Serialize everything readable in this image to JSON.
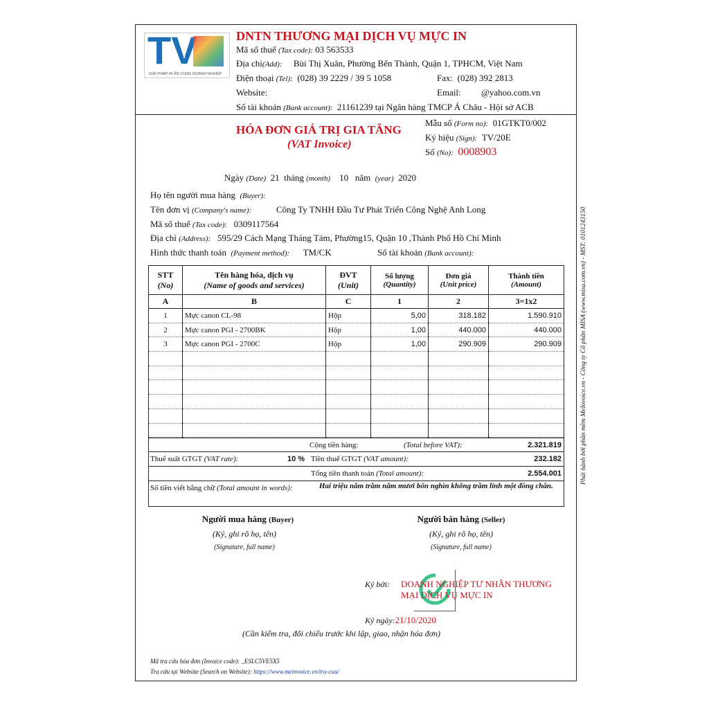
{
  "seller": {
    "name": "DNTN THƯƠNG MẠI DỊCH VỤ MỰC IN",
    "tax_label": "Mã số thuế",
    "tax_en": "(Tax code):",
    "tax": "03      563533",
    "addr_label": "Địa chỉ",
    "addr_en": "(Add):",
    "addr": "Bùi Thị Xuân, Phường Bến Thành, Quận 1, TPHCM, Việt Nam",
    "tel_label": "Điện thoại",
    "tel_en": "(Tel):",
    "tel": "(028) 39  2229 / 39 5 1058",
    "fax_label": "Fax:",
    "fax": "(028) 392  2813",
    "web_label": "Website:",
    "web": "",
    "email_label": "Email:",
    "email": "@yahoo.com.vn",
    "bank_label": "Số tài khoản",
    "bank_en": "(Bank account):",
    "bank": "21161239 tại Ngân hàng TMCP Á Châu - Hội sở ACB",
    "logo_text": "TV",
    "logo_tagline": "GIẢI PHÁP IN ẤN CÙNG DOANH NGHIỆP"
  },
  "invoice": {
    "title": "HÓA ĐƠN GIÁ TRỊ GIA TĂNG",
    "subtitle": "(VAT Invoice)",
    "form_label": "Mẫu số",
    "form_en": "(Form no):",
    "form": "01GTKT0/002",
    "sign_label": "Ký hiệu",
    "sign_en": "(Sign):",
    "sign": "TV/20E",
    "no_label": "Số",
    "no_en": "(No):",
    "no": "0008903",
    "date_label": "Ngày",
    "date_en": "(Date)",
    "day": "21",
    "month_label": "tháng",
    "month_en": "(month)",
    "month": "10",
    "year_label": "năm",
    "year_en": "(year)",
    "year": "2020"
  },
  "buyer": {
    "name_label": "Họ tên người mua hàng",
    "name_en": "(Buyer):",
    "company_label": "Tên đơn vị",
    "company_en": "(Company's name):",
    "company": "Công Ty TNHH Đầu Tư Phát Triển Công Nghệ Anh Long",
    "tax_label": "Mã số thuế",
    "tax_en": "(Tax code):",
    "tax": "0309117564",
    "addr_label": "Địa chỉ",
    "addr_en": "(Address):",
    "addr": "595/29 Cách Mạng Tháng Tám, Phường15, Quận 10 ,Thành Phố Hồ Chí Minh",
    "pay_label": "Hình thức thanh toán",
    "pay_en": "(Payment method):",
    "pay": "TM/CK",
    "bank_label": "Số tài khoản",
    "bank_en": "(Bank account):"
  },
  "table": {
    "headers": [
      [
        "STT",
        "(No)"
      ],
      [
        "Tên hàng hóa, dịch vụ",
        "(Name of goods and services)"
      ],
      [
        "ĐVT",
        "(Unit)"
      ],
      [
        "Số lượng",
        "(Quantity)"
      ],
      [
        "Đơn giá",
        "(Unit price)"
      ],
      [
        "Thành tiền",
        "(Amount)"
      ]
    ],
    "codes": [
      "A",
      "B",
      "C",
      "1",
      "2",
      "3=1x2"
    ],
    "rows": [
      [
        "1",
        "Mực canon CL-98",
        "Hộp",
        "5,00",
        "318.182",
        "1.590.910"
      ],
      [
        "2",
        "Mực canon PGI - 2700BK",
        "Hộp",
        "1,00",
        "440.000",
        "440.000"
      ],
      [
        "3",
        "Mực canon PGI - 2700C",
        "Hộp",
        "1,00",
        "290.909",
        "290.909"
      ]
    ]
  },
  "totals": {
    "before_label": "Cộng tiền hàng:",
    "before_en": "(Total before VAT):",
    "before": "2.321.819",
    "rate_label": "Thuế suất GTGT",
    "rate_en": "(VAT rate):",
    "rate": "10 %",
    "vat_label": "Tiền thuế GTGT",
    "vat_en": "(VAT amount):",
    "vat": "232.182",
    "total_label": "Tổng tiền thanh toán",
    "total_en": "(Total amount):",
    "total": "2.554.001",
    "words_label": "Số tiền viết bằng chữ",
    "words_en": "(Total amount in words):",
    "words": "Hai triệu năm trăm năm mươi bốn nghìn không trăm linh một đồng chẵn."
  },
  "signatures": {
    "buyer": "Người mua hàng",
    "buyer_en": "(Buyer)",
    "seller": "Người bán hàng",
    "seller_en": "(Seller)",
    "sign_note": "(Ký, ghi rõ họ, tên)",
    "sign_note_en": "(Signature, full name)",
    "signed_by_label": "Ký bởi:",
    "signed_by": "DOANH NGHIỆP TƯ NHÂN THƯƠNG MẠI DỊCH VỤ MỰC IN",
    "signed_date_label": "Ký ngày:",
    "signed_date": "21/10/2020",
    "check_note": "(Cần kiểm tra, đối chiếu trước khi lập, giao, nhận hóa đơn)"
  },
  "footer": {
    "code_label": "Mã tra cứu hóa đơn (Invoice code):",
    "code": "_ESLC5VE5X5",
    "site_label": "Tra cứu tại Website (Search on Website):",
    "site": "https://www.meinvoice.vn/tra-cuu/"
  },
  "side_note": "Phát hành bởi phần mềm MeInvoice.vn - Công ty Cổ phần MISA (www.misa.com.vn) - MST: 0101243150",
  "colors": {
    "red": "#c8141e",
    "stamp_green": "#3cc48a"
  }
}
